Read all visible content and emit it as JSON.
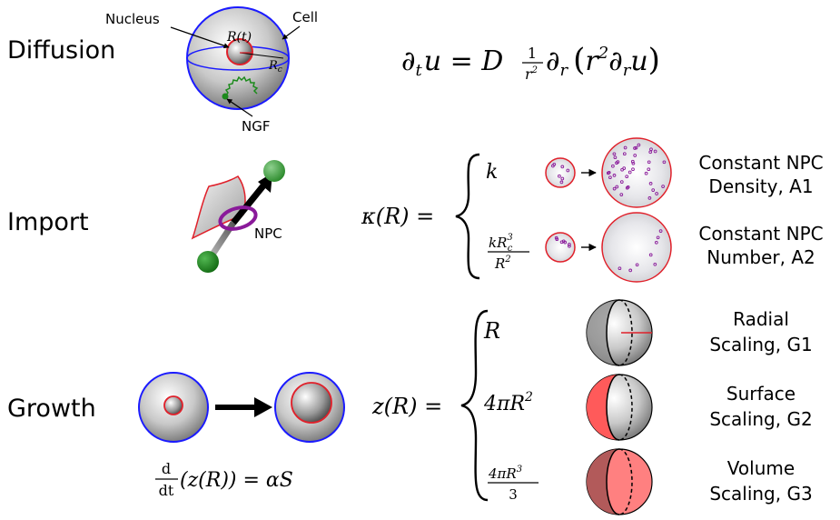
{
  "sections": {
    "diffusion": {
      "heading": "Diffusion",
      "label_nucleus": "Nucleus",
      "label_cell": "Cell",
      "label_rt": "R(t)",
      "label_rc_main": "R",
      "label_rc_sub": "c",
      "label_ngf": "NGF",
      "equation": {
        "lhs": "∂",
        "lhs_sub": "t",
        "lhs_var": "u = D",
        "frac_num": "1",
        "frac_den": "r",
        "frac_den_sup": "2",
        "op": "∂",
        "op_sub": "r",
        "paren_open": "(",
        "inner": "r",
        "inner_sup": "2",
        "inner_op": "∂",
        "inner_op_sub": "r",
        "inner_var": "u",
        "paren_close": ")"
      }
    },
    "import": {
      "heading": "Import",
      "label_npc": "NPC",
      "lhs": "κ(R) =",
      "case1_expr": "k",
      "case2_num_main": "kR",
      "case2_num_sup": "3",
      "case2_num_sub": "c",
      "case2_den_main": "R",
      "case2_den_sup": "2",
      "case1_desc_line1": "Constant NPC",
      "case1_desc_line2": "Density, A1",
      "case2_desc_line1": "Constant NPC",
      "case2_desc_line2": "Number, A2"
    },
    "growth": {
      "heading": "Growth",
      "ode_num": "d",
      "ode_den": "dt",
      "ode_rest": "(z(R)) = αS",
      "lhs": "z(R) =",
      "case1_expr": "R",
      "case2_expr_main": "4πR",
      "case2_expr_sup": "2",
      "case3_num_main": "4πR",
      "case3_num_sup": "3",
      "case3_den": "3",
      "case1_desc_line1": "Radial",
      "case1_desc_line2": "Scaling, G1",
      "case2_desc_line1": "Surface",
      "case2_desc_line2": "Scaling, G2",
      "case3_desc_line1": "Volume",
      "case3_desc_line2": "Scaling, G3"
    }
  },
  "colors": {
    "cell_outline": "#1a1aff",
    "nucleus_outline": "#e0202a",
    "ngf_green": "#1c8a1c",
    "npc_purple": "#8a1a9a",
    "surface_red": "#ff5a5a",
    "volume_red": "#ff8080"
  }
}
